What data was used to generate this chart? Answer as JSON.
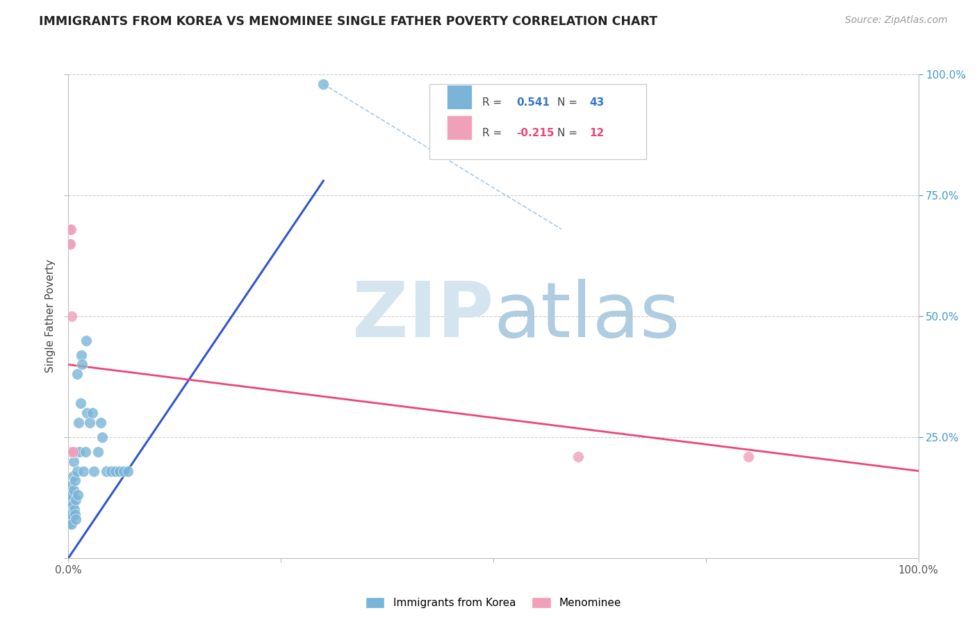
{
  "title": "IMMIGRANTS FROM KOREA VS MENOMINEE SINGLE FATHER POVERTY CORRELATION CHART",
  "source": "Source: ZipAtlas.com",
  "ylabel": "Single Father Poverty",
  "legend1_label": "Immigrants from Korea",
  "legend2_label": "Menominee",
  "blue_color": "#7ab4d8",
  "pink_color": "#f0a0b8",
  "blue_line_color": "#3355cc",
  "pink_line_color": "#ee4477",
  "diag_line_color": "#a0c0e0",
  "watermark_zip_color": "#c5d8e8",
  "watermark_atlas_color": "#98b8d0",
  "blue_r_val": "0.541",
  "blue_n_val": "43",
  "pink_r_val": "-0.215",
  "pink_n_val": "12",
  "blue_scatter_x": [
    0.001,
    0.001,
    0.002,
    0.002,
    0.003,
    0.003,
    0.004,
    0.004,
    0.005,
    0.005,
    0.006,
    0.006,
    0.007,
    0.007,
    0.008,
    0.008,
    0.009,
    0.009,
    0.01,
    0.01,
    0.011,
    0.012,
    0.013,
    0.014,
    0.015,
    0.016,
    0.018,
    0.02,
    0.021,
    0.022,
    0.025,
    0.028,
    0.03,
    0.035,
    0.038,
    0.04,
    0.045,
    0.05,
    0.055,
    0.06,
    0.065,
    0.07,
    0.3
  ],
  "blue_scatter_y": [
    0.1,
    0.07,
    0.12,
    0.08,
    0.15,
    0.09,
    0.13,
    0.07,
    0.17,
    0.11,
    0.2,
    0.14,
    0.22,
    0.1,
    0.16,
    0.09,
    0.12,
    0.08,
    0.38,
    0.18,
    0.13,
    0.28,
    0.22,
    0.32,
    0.42,
    0.4,
    0.18,
    0.22,
    0.45,
    0.3,
    0.28,
    0.3,
    0.18,
    0.22,
    0.28,
    0.25,
    0.18,
    0.18,
    0.18,
    0.18,
    0.18,
    0.18,
    0.98
  ],
  "pink_scatter_x": [
    0.001,
    0.001,
    0.002,
    0.002,
    0.003,
    0.003,
    0.004,
    0.005,
    0.6,
    0.8
  ],
  "pink_scatter_y": [
    0.65,
    0.68,
    0.22,
    0.65,
    0.68,
    0.22,
    0.5,
    0.22,
    0.21,
    0.21
  ],
  "pink_scatter2_x": [
    0.001,
    0.002
  ],
  "pink_scatter2_y": [
    0.5,
    0.22
  ],
  "blue_line_x": [
    0.0,
    0.3
  ],
  "blue_line_y": [
    0.0,
    0.78
  ],
  "pink_line_x": [
    0.0,
    1.0
  ],
  "pink_line_y": [
    0.4,
    0.18
  ],
  "diag_line_x": [
    0.3,
    0.58
  ],
  "diag_line_y": [
    0.98,
    0.68
  ],
  "xlim": [
    0.0,
    1.0
  ],
  "ylim": [
    0.0,
    1.0
  ],
  "xtick_positions": [
    0.0,
    0.25,
    0.5,
    0.75,
    1.0
  ],
  "ytick_positions": [
    0.0,
    0.25,
    0.5,
    0.75,
    1.0
  ],
  "grid_yticks": [
    0.25,
    0.5,
    0.75,
    1.0
  ]
}
